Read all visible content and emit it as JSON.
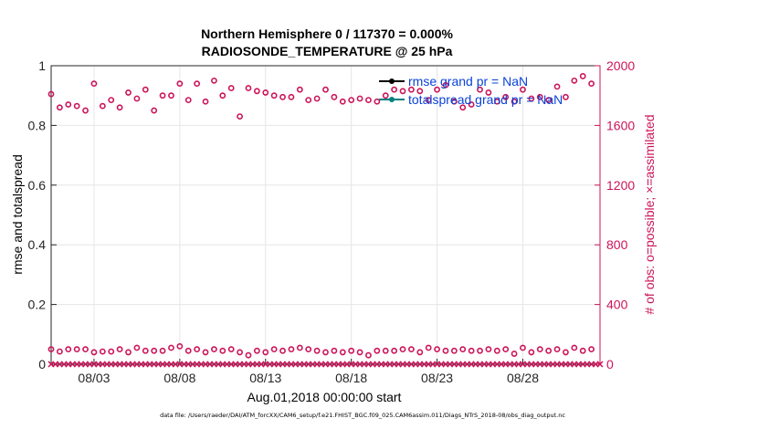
{
  "chart_data": {
    "type": "scatter",
    "title_line1": "Northern Hemisphere 0 / 117370 = 0.000%",
    "title_line2": "RADIOSONDE_TEMPERATURE @ 25 hPa",
    "ylabel_left": "rmse and totalspread",
    "ylabel_right": "# of obs: o=possible; ×=assimilated",
    "xlabel": "Aug.01,2018 00:00:00 start",
    "footer": "data file: /Users/raeder/DAI/ATM_forcXX/CAM6_setup/f.e21.FHIST_BGC.f09_025.CAM6assim.011/Diags_NTrS_2018-08/obs_diag_output.nc",
    "ylim_left": [
      0,
      1
    ],
    "yticks_left": [
      "0",
      "0.2",
      "0.4",
      "0.6",
      "0.8",
      "1"
    ],
    "ylim_right": [
      0,
      2000
    ],
    "yticks_right": [
      "0",
      "400",
      "800",
      "1200",
      "1600",
      "2000"
    ],
    "xlim": [
      0.5,
      32.5
    ],
    "xtick_days": [
      3,
      8,
      13,
      18,
      23,
      28
    ],
    "xtick_labels": [
      "08/03",
      "08/08",
      "08/13",
      "08/18",
      "08/23",
      "08/28"
    ],
    "legend": [
      {
        "label": "rmse grand pr = NaN",
        "color": "#000000"
      },
      {
        "label": "totalspread grand pr = NaN",
        "color": "#008080"
      }
    ],
    "colors": {
      "obs": "#cc1459",
      "axis": "#262626",
      "legend_text": "#0a43d8"
    },
    "series": [
      {
        "name": "possible_high_level",
        "x": [
          0.5,
          1,
          1.5,
          2,
          2.5,
          3,
          3.5,
          4,
          4.5,
          5,
          5.5,
          6,
          6.5,
          7,
          7.5,
          8,
          8.5,
          9,
          9.5,
          10,
          10.5,
          11,
          11.5,
          12,
          12.5,
          13,
          13.5,
          14,
          14.5,
          15,
          15.5,
          16,
          16.5,
          17,
          17.5,
          18,
          18.5,
          19,
          19.5,
          20,
          20.5,
          21,
          21.5,
          22,
          22.5,
          23,
          23.5,
          24,
          24.5,
          25,
          25.5,
          26,
          26.5,
          27,
          27.5,
          28,
          28.5,
          29,
          29.5,
          30,
          30.5,
          31,
          31.5,
          32
        ],
        "values": [
          1810,
          1720,
          1740,
          1730,
          1700,
          1880,
          1730,
          1770,
          1720,
          1820,
          1780,
          1840,
          1700,
          1800,
          1800,
          1880,
          1770,
          1880,
          1760,
          1900,
          1800,
          1850,
          1660,
          1850,
          1830,
          1820,
          1800,
          1790,
          1790,
          1840,
          1770,
          1780,
          1840,
          1790,
          1760,
          1770,
          1780,
          1770,
          1760,
          1800,
          1840,
          1830,
          1840,
          1830,
          1770,
          1840,
          1870,
          1760,
          1720,
          1740,
          1840,
          1820,
          1760,
          1790,
          1760,
          1840,
          1780,
          1790,
          1770,
          1860,
          1790,
          1900,
          1930,
          1880
        ]
      },
      {
        "name": "possible_low_level",
        "x": [
          0.5,
          1,
          1.5,
          2,
          2.5,
          3,
          3.5,
          4,
          4.5,
          5,
          5.5,
          6,
          6.5,
          7,
          7.5,
          8,
          8.5,
          9,
          9.5,
          10,
          10.5,
          11,
          11.5,
          12,
          12.5,
          13,
          13.5,
          14,
          14.5,
          15,
          15.5,
          16,
          16.5,
          17,
          17.5,
          18,
          18.5,
          19,
          19.5,
          20,
          20.5,
          21,
          21.5,
          22,
          22.5,
          23,
          23.5,
          24,
          24.5,
          25,
          25.5,
          26,
          26.5,
          27,
          27.5,
          28,
          28.5,
          29,
          29.5,
          30,
          30.5,
          31,
          31.5,
          32
        ],
        "values": [
          100,
          85,
          100,
          100,
          100,
          80,
          85,
          85,
          100,
          80,
          110,
          90,
          90,
          90,
          110,
          120,
          90,
          100,
          80,
          100,
          90,
          100,
          80,
          60,
          90,
          80,
          100,
          90,
          100,
          110,
          100,
          90,
          80,
          90,
          80,
          90,
          80,
          60,
          90,
          90,
          90,
          100,
          100,
          80,
          110,
          100,
          90,
          90,
          100,
          90,
          90,
          100,
          90,
          100,
          70,
          110,
          80,
          100,
          90,
          100,
          80,
          110,
          90,
          100
        ]
      },
      {
        "name": "assimilated",
        "x_from": 0.5,
        "x_to": 32.5,
        "x_step": 0.25,
        "values_const": 0
      }
    ]
  }
}
